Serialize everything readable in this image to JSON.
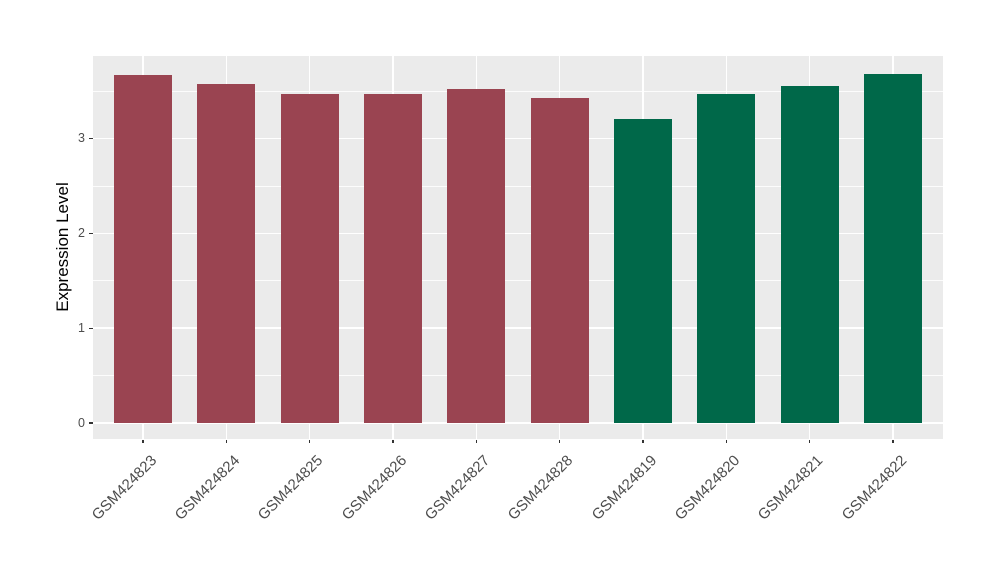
{
  "chart_data": {
    "type": "bar",
    "title": "",
    "xlabel": "",
    "ylabel": "Expression Level",
    "categories": [
      "GSM424823",
      "GSM424824",
      "GSM424825",
      "GSM424826",
      "GSM424827",
      "GSM424828",
      "GSM424819",
      "GSM424820",
      "GSM424821",
      "GSM424822"
    ],
    "values": [
      3.67,
      3.57,
      3.47,
      3.47,
      3.52,
      3.43,
      3.21,
      3.47,
      3.55,
      3.68
    ],
    "bar_colors": [
      "#9A4451",
      "#9A4451",
      "#9A4451",
      "#9A4451",
      "#9A4451",
      "#9A4451",
      "#006849",
      "#006849",
      "#006849",
      "#006849"
    ],
    "color_groups": {
      "maroon_group": {
        "color": "#9A4451",
        "categories": [
          "GSM424823",
          "GSM424824",
          "GSM424825",
          "GSM424826",
          "GSM424827",
          "GSM424828"
        ]
      },
      "green_group": {
        "color": "#006849",
        "categories": [
          "GSM424819",
          "GSM424820",
          "GSM424821",
          "GSM424822"
        ]
      }
    },
    "yticks": [
      0,
      1,
      2,
      3
    ],
    "yticks_minor": [
      0.5,
      1.5,
      2.5,
      3.5
    ],
    "ylim": [
      -0.17,
      3.87
    ],
    "xlim_padding": 0.6,
    "bar_width_fraction": 0.7,
    "grid": "on",
    "legend": "none",
    "panel_bg": "#EBEBEB",
    "grid_color": "#FFFFFF",
    "tick_color": "#333333",
    "tick_label_color": "#4D4D4D"
  }
}
